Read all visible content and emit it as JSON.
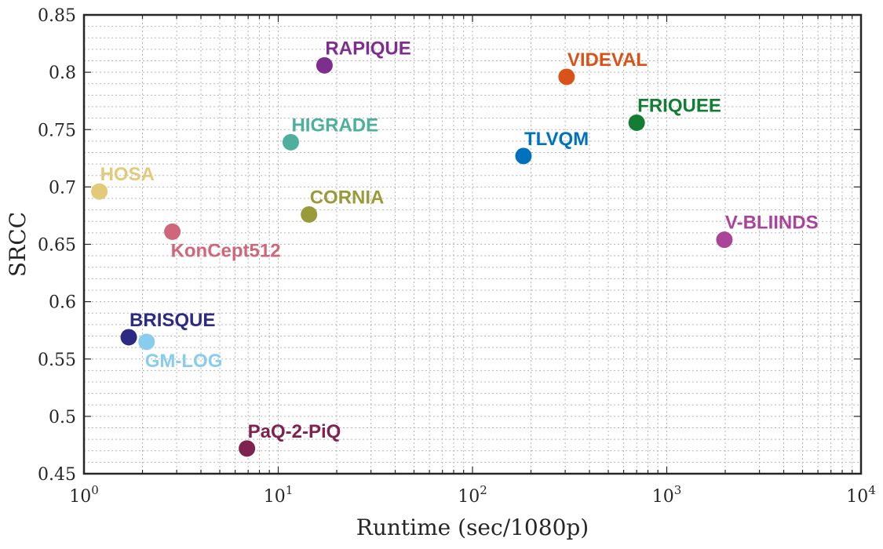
{
  "chart_data": {
    "type": "scatter",
    "xlabel": "Runtime (sec/1080p)",
    "ylabel": "SRCC",
    "xscale": "log",
    "xlim": [
      1,
      10000
    ],
    "ylim": [
      0.45,
      0.85
    ],
    "grid": true,
    "legend": "none",
    "x_ticks": [
      {
        "value": 1,
        "base": "10",
        "exp": "0"
      },
      {
        "value": 10,
        "base": "10",
        "exp": "1"
      },
      {
        "value": 100,
        "base": "10",
        "exp": "2"
      },
      {
        "value": 1000,
        "base": "10",
        "exp": "3"
      },
      {
        "value": 10000,
        "base": "10",
        "exp": "4"
      }
    ],
    "y_ticks": [
      {
        "value": 0.45,
        "label": "0.45"
      },
      {
        "value": 0.5,
        "label": "0.5"
      },
      {
        "value": 0.55,
        "label": "0.55"
      },
      {
        "value": 0.6,
        "label": "0.6"
      },
      {
        "value": 0.65,
        "label": "0.65"
      },
      {
        "value": 0.7,
        "label": "0.7"
      },
      {
        "value": 0.75,
        "label": "0.75"
      },
      {
        "value": 0.8,
        "label": "0.8"
      },
      {
        "value": 0.85,
        "label": "0.85"
      }
    ],
    "points": [
      {
        "name": "RAPIQUE",
        "x": 17.3,
        "y": 0.806,
        "color": "#7e2f8e",
        "label_pos": "above-right"
      },
      {
        "name": "VIDEVAL",
        "x": 305,
        "y": 0.796,
        "color": "#d95319",
        "label_pos": "above-right"
      },
      {
        "name": "FRIQUEE",
        "x": 700,
        "y": 0.756,
        "color": "#137e33",
        "label_pos": "above-right"
      },
      {
        "name": "HIGRADE",
        "x": 11.6,
        "y": 0.739,
        "color": "#4daf9c",
        "label_pos": "above-right"
      },
      {
        "name": "TLVQM",
        "x": 183,
        "y": 0.727,
        "color": "#0072bd",
        "label_pos": "above-right"
      },
      {
        "name": "HOSA",
        "x": 1.2,
        "y": 0.696,
        "color": "#e3c97a",
        "label_pos": "above-right"
      },
      {
        "name": "CORNIA",
        "x": 14.4,
        "y": 0.676,
        "color": "#999a3a",
        "label_pos": "above-right"
      },
      {
        "name": "KonCept512",
        "x": 2.85,
        "y": 0.661,
        "color": "#cf6679",
        "label_pos": "below-right"
      },
      {
        "name": "V-BLIINDS",
        "x": 1980,
        "y": 0.654,
        "color": "#aa4499",
        "label_pos": "above-right"
      },
      {
        "name": "BRISQUE",
        "x": 1.7,
        "y": 0.569,
        "color": "#2c2a82",
        "label_pos": "above-right"
      },
      {
        "name": "GM-LOG",
        "x": 2.1,
        "y": 0.565,
        "color": "#88ccee",
        "label_pos": "below-right"
      },
      {
        "name": "PaQ-2-PiQ",
        "x": 6.9,
        "y": 0.472,
        "color": "#7e2350",
        "label_pos": "above-right"
      }
    ]
  }
}
